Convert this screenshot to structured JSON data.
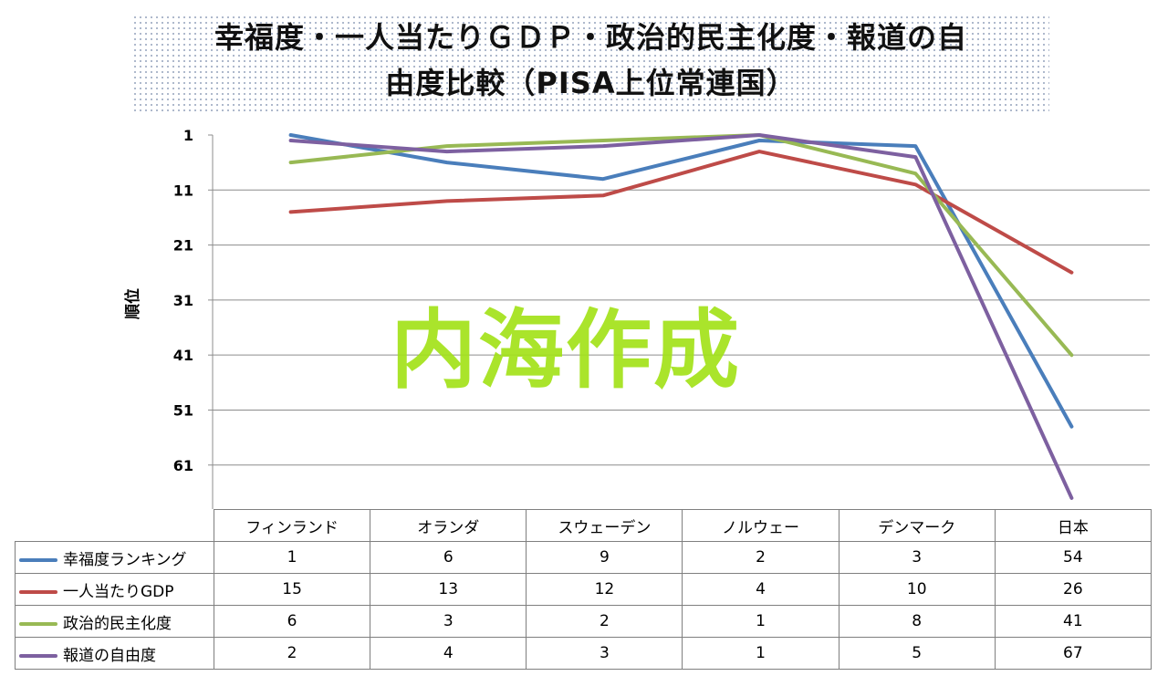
{
  "title_lines": [
    "幸福度・一人当たりＧＤＰ・政治的民主化度・報道の自",
    "由度比較（PISA上位常連国）"
  ],
  "watermark": "内海作成",
  "chart_data": {
    "type": "line",
    "title": "幸福度・一人当たりＧＤＰ・政治的民主化度・報道の自由度比較（PISA上位常連国）",
    "ylabel": "順位",
    "xlabel": "",
    "y_reversed": true,
    "ylim": [
      1,
      69
    ],
    "yticks": [
      1,
      11,
      21,
      31,
      41,
      51,
      61
    ],
    "grid": true,
    "legend": "data-table",
    "categories": [
      "フィンランド",
      "オランダ",
      "スウェーデン",
      "ノルウェー",
      "デンマーク",
      "日本"
    ],
    "series": [
      {
        "name": "幸福度ランキング",
        "color": "#4a7ebb",
        "values": [
          1,
          6,
          9,
          2,
          3,
          54
        ]
      },
      {
        "name": "一人当たりGDP",
        "color": "#be4b48",
        "values": [
          15,
          13,
          12,
          4,
          10,
          26
        ]
      },
      {
        "name": "政治的民主化度",
        "color": "#98b954",
        "values": [
          6,
          3,
          2,
          1,
          8,
          41
        ]
      },
      {
        "name": "報道の自由度",
        "color": "#7d60a0",
        "values": [
          2,
          4,
          3,
          1,
          5,
          67
        ]
      }
    ]
  }
}
